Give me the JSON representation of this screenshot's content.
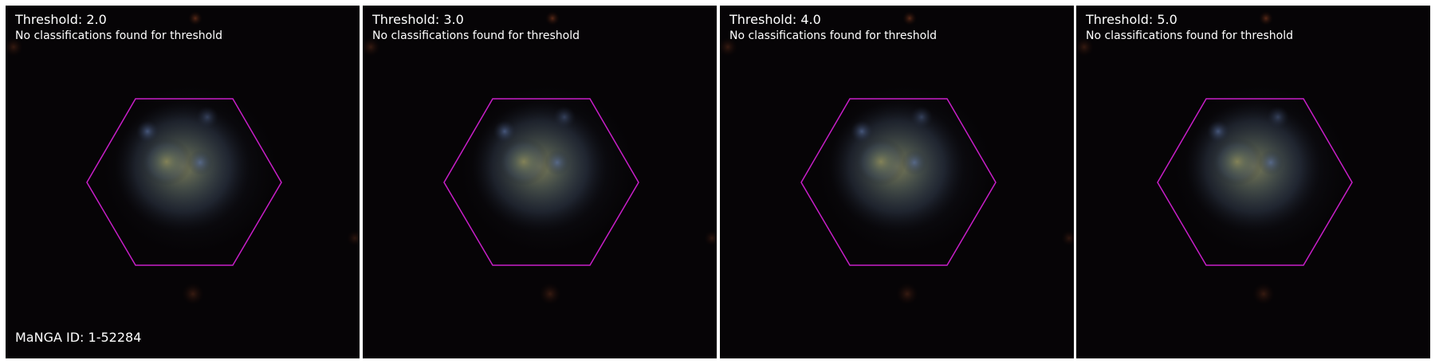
{
  "panels": [
    {
      "title": "Threshold: 2.0",
      "subtitle": "No classifications found for threshold"
    },
    {
      "title": "Threshold: 3.0",
      "subtitle": "No classifications found for threshold"
    },
    {
      "title": "Threshold: 4.0",
      "subtitle": "No classifications found for threshold"
    },
    {
      "title": "Threshold: 5.0",
      "subtitle": "No classifications found for threshold"
    }
  ],
  "manga_id_label": "MaNGA ID: 1-52284",
  "colors": {
    "hexagon_outline": "#c81ec8",
    "background": "#050305",
    "text": "#ffffff"
  }
}
